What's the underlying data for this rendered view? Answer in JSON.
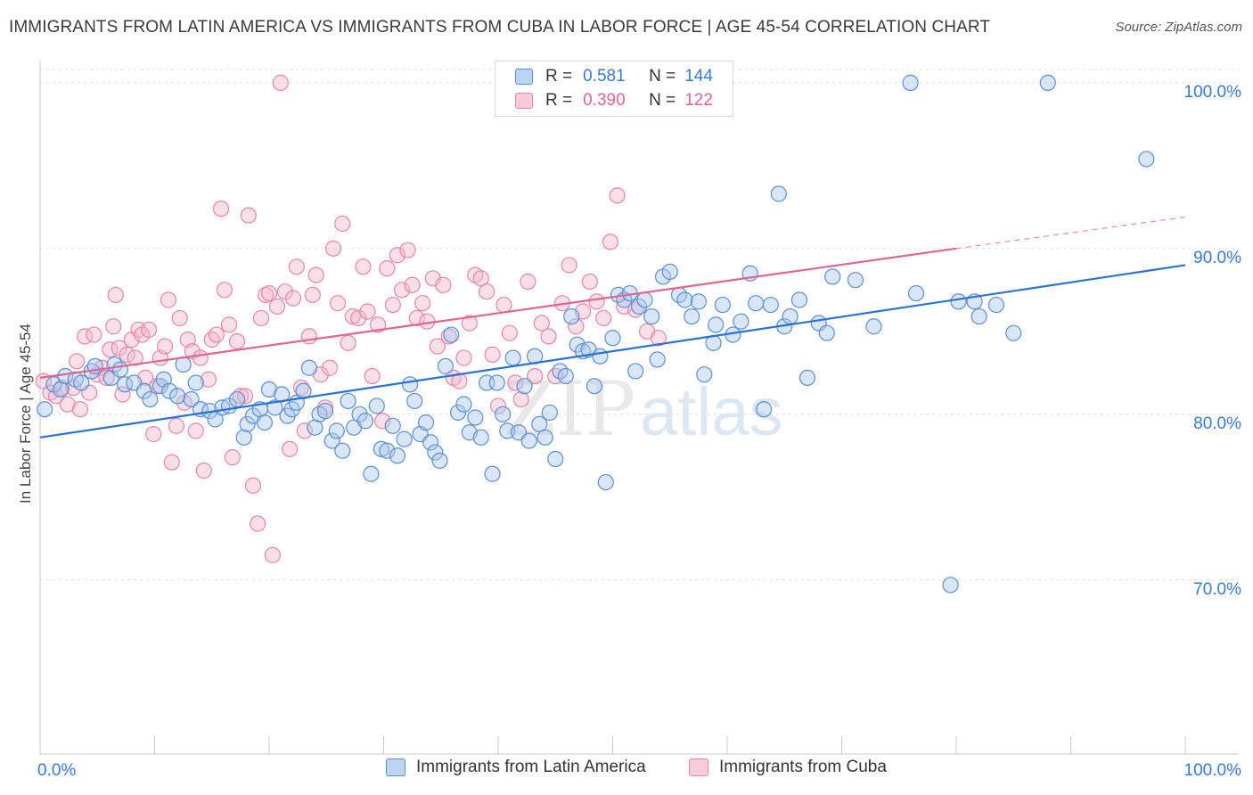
{
  "header": {
    "title": "IMMIGRANTS FROM LATIN AMERICA VS IMMIGRANTS FROM CUBA IN LABOR FORCE | AGE 45-54 CORRELATION CHART",
    "source": "Source: ZipAtlas.com"
  },
  "watermark": {
    "zip": "ZIP",
    "atlas": "atlas"
  },
  "legend": {
    "rows": [
      {
        "r_label": "R =",
        "r_value": "0.581",
        "n_label": "N =",
        "n_value": "144"
      },
      {
        "r_label": "R =",
        "r_value": "0.390",
        "n_label": "N =",
        "n_value": "122"
      }
    ]
  },
  "colors": {
    "blue_fill": "#a9c8f0",
    "blue_stroke": "#5b8fd4",
    "blue_line": "#2a72d2",
    "blue_text": "#3b78d6",
    "pink_fill": "#f6b8cb",
    "pink_stroke": "#e885a6",
    "pink_line": "#e2648f",
    "pink_text": "#e2648f",
    "grid": "#dcdcdc"
  },
  "chart_data": {
    "type": "scatter",
    "title": "IMMIGRANTS FROM LATIN AMERICA VS IMMIGRANTS FROM CUBA IN LABOR FORCE | AGE 45-54 CORRELATION CHART",
    "ylabel": "In Labor Force | Age 45-54",
    "xlabel": "",
    "xlim": [
      0,
      100
    ],
    "ylim": [
      59.5,
      101.5
    ],
    "x_tick_labels": [
      "0.0%",
      "100.0%"
    ],
    "y_ticks": [
      70,
      80,
      90,
      100
    ],
    "y_tick_labels": [
      "70.0%",
      "80.0%",
      "90.0%",
      "100.0%"
    ],
    "grid": "horizontal dashed",
    "legend_position": "bottom",
    "series": [
      {
        "name": "Immigrants from Latin America",
        "color": "#5b8fd4",
        "R": 0.581,
        "N": 144,
        "trend": {
          "x": [
            0,
            100
          ],
          "y": [
            78.6,
            89.0
          ]
        },
        "points": [
          [
            0.4,
            80.3
          ],
          [
            1.2,
            81.8
          ],
          [
            1.8,
            81.5
          ],
          [
            2.2,
            82.3
          ],
          [
            3.1,
            82.1
          ],
          [
            3.6,
            81.9
          ],
          [
            4.5,
            82.6
          ],
          [
            4.8,
            82.9
          ],
          [
            6.2,
            82.2
          ],
          [
            6.5,
            83.0
          ],
          [
            7.0,
            82.7
          ],
          [
            7.4,
            81.8
          ],
          [
            8.2,
            81.9
          ],
          [
            9.1,
            81.4
          ],
          [
            9.6,
            80.9
          ],
          [
            10.5,
            81.7
          ],
          [
            10.8,
            82.1
          ],
          [
            11.3,
            81.4
          ],
          [
            12.0,
            81.1
          ],
          [
            12.5,
            83.0
          ],
          [
            13.2,
            80.9
          ],
          [
            13.6,
            81.9
          ],
          [
            14.0,
            80.3
          ],
          [
            14.8,
            80.2
          ],
          [
            15.3,
            79.7
          ],
          [
            15.9,
            80.4
          ],
          [
            16.5,
            80.5
          ],
          [
            17.2,
            80.9
          ],
          [
            17.8,
            78.6
          ],
          [
            18.1,
            79.4
          ],
          [
            18.6,
            79.9
          ],
          [
            19.2,
            80.3
          ],
          [
            19.6,
            79.5
          ],
          [
            20.0,
            81.5
          ],
          [
            20.5,
            80.4
          ],
          [
            21.1,
            81.2
          ],
          [
            21.6,
            79.9
          ],
          [
            22.0,
            80.3
          ],
          [
            22.4,
            80.7
          ],
          [
            23.0,
            81.4
          ],
          [
            23.5,
            82.8
          ],
          [
            24.0,
            79.2
          ],
          [
            24.4,
            80.0
          ],
          [
            24.9,
            80.2
          ],
          [
            25.5,
            78.4
          ],
          [
            25.9,
            79.0
          ],
          [
            26.4,
            77.8
          ],
          [
            26.9,
            80.8
          ],
          [
            27.4,
            79.2
          ],
          [
            27.9,
            80.0
          ],
          [
            28.4,
            79.6
          ],
          [
            28.9,
            76.4
          ],
          [
            29.4,
            80.5
          ],
          [
            29.8,
            77.9
          ],
          [
            30.3,
            77.8
          ],
          [
            30.8,
            79.3
          ],
          [
            31.2,
            77.5
          ],
          [
            31.8,
            78.5
          ],
          [
            32.3,
            81.8
          ],
          [
            32.7,
            80.8
          ],
          [
            33.2,
            78.8
          ],
          [
            33.7,
            79.5
          ],
          [
            34.1,
            78.3
          ],
          [
            34.5,
            77.7
          ],
          [
            34.9,
            77.2
          ],
          [
            35.4,
            82.9
          ],
          [
            35.9,
            84.8
          ],
          [
            36.5,
            80.1
          ],
          [
            37.0,
            80.6
          ],
          [
            37.5,
            78.9
          ],
          [
            38.0,
            79.8
          ],
          [
            38.5,
            78.6
          ],
          [
            39.0,
            81.9
          ],
          [
            39.5,
            76.4
          ],
          [
            39.9,
            81.9
          ],
          [
            40.4,
            80.0
          ],
          [
            40.8,
            79.0
          ],
          [
            41.3,
            83.4
          ],
          [
            41.8,
            78.9
          ],
          [
            42.3,
            81.7
          ],
          [
            42.7,
            78.4
          ],
          [
            43.2,
            83.5
          ],
          [
            43.6,
            79.4
          ],
          [
            44.1,
            78.6
          ],
          [
            44.5,
            80.1
          ],
          [
            45.0,
            77.3
          ],
          [
            45.4,
            82.6
          ],
          [
            45.9,
            82.3
          ],
          [
            46.4,
            85.9
          ],
          [
            46.9,
            84.2
          ],
          [
            47.4,
            83.8
          ],
          [
            47.9,
            83.9
          ],
          [
            48.4,
            81.7
          ],
          [
            48.9,
            83.5
          ],
          [
            49.4,
            75.9
          ],
          [
            50.0,
            84.6
          ],
          [
            50.5,
            87.2
          ],
          [
            51.0,
            86.9
          ],
          [
            51.5,
            87.3
          ],
          [
            52.0,
            82.6
          ],
          [
            52.3,
            86.5
          ],
          [
            52.8,
            86.9
          ],
          [
            53.4,
            85.9
          ],
          [
            53.9,
            83.3
          ],
          [
            54.4,
            88.3
          ],
          [
            55.0,
            88.6
          ],
          [
            55.8,
            87.2
          ],
          [
            56.3,
            86.9
          ],
          [
            56.9,
            85.9
          ],
          [
            57.5,
            86.8
          ],
          [
            58.0,
            82.4
          ],
          [
            58.8,
            84.3
          ],
          [
            59.6,
            86.6
          ],
          [
            60.5,
            84.8
          ],
          [
            61.2,
            85.6
          ],
          [
            62.0,
            88.5
          ],
          [
            62.5,
            86.7
          ],
          [
            63.2,
            80.3
          ],
          [
            63.8,
            86.6
          ],
          [
            64.5,
            93.3
          ],
          [
            65.0,
            85.3
          ],
          [
            65.5,
            85.9
          ],
          [
            66.3,
            86.9
          ],
          [
            67.0,
            82.2
          ],
          [
            68.0,
            85.5
          ],
          [
            68.7,
            84.9
          ],
          [
            69.2,
            88.3
          ],
          [
            71.2,
            88.1
          ],
          [
            72.8,
            85.3
          ],
          [
            76.0,
            100.0
          ],
          [
            76.5,
            87.3
          ],
          [
            79.5,
            69.7
          ],
          [
            80.2,
            86.8
          ],
          [
            81.6,
            86.8
          ],
          [
            82.0,
            85.9
          ],
          [
            83.5,
            86.6
          ],
          [
            85.0,
            84.9
          ],
          [
            88.0,
            100.0
          ],
          [
            96.6,
            95.4
          ],
          [
            59.0,
            85.4
          ]
        ]
      },
      {
        "name": "Immigrants from Cuba",
        "color": "#e885a6",
        "R": 0.39,
        "N": 122,
        "trend": {
          "x": [
            0,
            80
          ],
          "y": [
            82.2,
            90.0
          ]
        },
        "trend_dashed_extension": {
          "x": [
            80,
            100
          ],
          "y": [
            90.0,
            91.9
          ]
        },
        "points": [
          [
            0.3,
            82.0
          ],
          [
            0.9,
            81.3
          ],
          [
            1.4,
            81.1
          ],
          [
            1.9,
            81.6
          ],
          [
            2.4,
            80.6
          ],
          [
            2.9,
            81.6
          ],
          [
            3.2,
            83.2
          ],
          [
            3.5,
            80.3
          ],
          [
            3.9,
            84.7
          ],
          [
            4.3,
            81.3
          ],
          [
            4.7,
            84.8
          ],
          [
            5.0,
            82.4
          ],
          [
            5.4,
            82.8
          ],
          [
            5.8,
            82.2
          ],
          [
            6.1,
            83.9
          ],
          [
            6.4,
            85.3
          ],
          [
            6.6,
            87.2
          ],
          [
            6.9,
            84.0
          ],
          [
            7.2,
            81.2
          ],
          [
            7.6,
            83.6
          ],
          [
            8.0,
            84.5
          ],
          [
            8.3,
            83.4
          ],
          [
            8.6,
            85.1
          ],
          [
            8.9,
            84.8
          ],
          [
            9.2,
            82.2
          ],
          [
            9.5,
            85.1
          ],
          [
            9.9,
            78.8
          ],
          [
            10.2,
            81.7
          ],
          [
            10.5,
            83.4
          ],
          [
            10.9,
            84.1
          ],
          [
            11.2,
            86.9
          ],
          [
            11.5,
            77.1
          ],
          [
            11.9,
            79.3
          ],
          [
            12.2,
            85.8
          ],
          [
            12.6,
            80.7
          ],
          [
            12.9,
            84.5
          ],
          [
            13.3,
            83.8
          ],
          [
            13.6,
            79.0
          ],
          [
            14.0,
            83.4
          ],
          [
            14.3,
            76.6
          ],
          [
            14.7,
            82.1
          ],
          [
            15.0,
            84.5
          ],
          [
            15.4,
            84.8
          ],
          [
            15.8,
            92.4
          ],
          [
            16.1,
            87.5
          ],
          [
            16.5,
            85.4
          ],
          [
            16.8,
            77.4
          ],
          [
            17.2,
            84.4
          ],
          [
            17.5,
            81.1
          ],
          [
            17.9,
            81.1
          ],
          [
            18.2,
            92.0
          ],
          [
            18.6,
            75.7
          ],
          [
            19.0,
            73.4
          ],
          [
            19.3,
            85.8
          ],
          [
            19.7,
            87.2
          ],
          [
            20.0,
            87.3
          ],
          [
            20.3,
            71.5
          ],
          [
            20.7,
            86.5
          ],
          [
            21.0,
            100.0
          ],
          [
            21.4,
            87.4
          ],
          [
            21.8,
            77.9
          ],
          [
            22.1,
            87.0
          ],
          [
            22.4,
            88.9
          ],
          [
            22.8,
            81.6
          ],
          [
            23.1,
            79.0
          ],
          [
            23.5,
            84.7
          ],
          [
            23.8,
            87.2
          ],
          [
            24.1,
            88.4
          ],
          [
            24.5,
            82.4
          ],
          [
            24.9,
            80.4
          ],
          [
            25.3,
            82.8
          ],
          [
            25.6,
            90.0
          ],
          [
            26.0,
            86.7
          ],
          [
            26.4,
            91.5
          ],
          [
            26.9,
            84.3
          ],
          [
            27.3,
            85.9
          ],
          [
            27.8,
            85.8
          ],
          [
            28.2,
            88.9
          ],
          [
            28.6,
            86.2
          ],
          [
            29.0,
            82.3
          ],
          [
            29.5,
            85.4
          ],
          [
            29.9,
            79.6
          ],
          [
            30.3,
            88.8
          ],
          [
            30.8,
            86.6
          ],
          [
            31.2,
            89.6
          ],
          [
            31.6,
            87.5
          ],
          [
            32.1,
            89.9
          ],
          [
            32.5,
            87.8
          ],
          [
            32.9,
            85.8
          ],
          [
            33.4,
            86.7
          ],
          [
            33.8,
            85.6
          ],
          [
            34.3,
            88.2
          ],
          [
            34.7,
            84.1
          ],
          [
            35.2,
            87.8
          ],
          [
            35.7,
            84.7
          ],
          [
            36.1,
            82.2
          ],
          [
            36.6,
            82.0
          ],
          [
            37.0,
            83.4
          ],
          [
            37.5,
            85.5
          ],
          [
            38.0,
            88.4
          ],
          [
            38.5,
            88.2
          ],
          [
            39.0,
            87.4
          ],
          [
            39.5,
            83.6
          ],
          [
            40.0,
            80.5
          ],
          [
            40.5,
            86.6
          ],
          [
            41.0,
            84.9
          ],
          [
            41.5,
            81.9
          ],
          [
            42.0,
            80.9
          ],
          [
            42.6,
            88.0
          ],
          [
            43.2,
            82.3
          ],
          [
            43.8,
            85.5
          ],
          [
            44.4,
            84.7
          ],
          [
            45.0,
            82.3
          ],
          [
            45.6,
            86.7
          ],
          [
            46.2,
            89.0
          ],
          [
            46.8,
            85.3
          ],
          [
            47.4,
            86.2
          ],
          [
            48.0,
            88.0
          ],
          [
            48.6,
            86.8
          ],
          [
            49.2,
            85.8
          ],
          [
            49.8,
            90.4
          ],
          [
            50.4,
            93.2
          ],
          [
            51.0,
            86.5
          ],
          [
            52.0,
            86.3
          ],
          [
            53.0,
            85.0
          ],
          [
            54.0,
            84.6
          ]
        ]
      }
    ]
  },
  "bottom_legend": {
    "items": [
      "Immigrants from Latin America",
      "Immigrants from Cuba"
    ]
  }
}
